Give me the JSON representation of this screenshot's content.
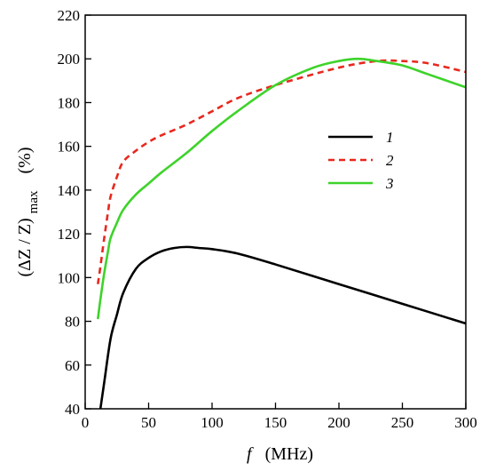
{
  "chart_data": {
    "type": "line",
    "xlabel": {
      "symbol": "f",
      "unit": "(MHz)"
    },
    "ylabel": {
      "main": "(ΔZ / Z)",
      "sub": "max",
      "unit": "(%)"
    },
    "xlim": [
      0,
      300
    ],
    "ylim": [
      40,
      220
    ],
    "xticks": [
      0,
      50,
      100,
      150,
      200,
      250,
      300
    ],
    "yticks": [
      40,
      60,
      80,
      100,
      120,
      140,
      160,
      180,
      200,
      220
    ],
    "grid": false,
    "legend_position": "center-right",
    "series": [
      {
        "name": "1",
        "color": "#000000",
        "dash": "solid",
        "x": [
          12,
          15,
          20,
          25,
          30,
          40,
          50,
          60,
          70,
          80,
          90,
          100,
          120,
          150,
          200,
          250,
          300
        ],
        "y": [
          40,
          52,
          72,
          83,
          93,
          104,
          109,
          112,
          113.5,
          114,
          113.5,
          113,
          111,
          106,
          97,
          88,
          79
        ]
      },
      {
        "name": "2",
        "color": "#e8281e",
        "dash": "dashed",
        "x": [
          10,
          12,
          15,
          18,
          20,
          25,
          30,
          40,
          50,
          60,
          80,
          100,
          120,
          150,
          200,
          230,
          250,
          270,
          300
        ],
        "y": [
          97,
          105,
          118,
          130,
          137,
          146,
          153,
          158,
          162,
          165,
          170,
          176,
          182,
          188,
          196,
          199,
          199,
          198,
          194
        ]
      },
      {
        "name": "3",
        "color": "#3ed32a",
        "dash": "solid",
        "x": [
          10,
          12,
          15,
          18,
          20,
          25,
          30,
          40,
          50,
          60,
          80,
          100,
          120,
          150,
          180,
          200,
          215,
          230,
          250,
          270,
          300
        ],
        "y": [
          81,
          90,
          102,
          112,
          118,
          125,
          131,
          138,
          143,
          148,
          157,
          167,
          176,
          188,
          196,
          199,
          200,
          199,
          197,
          193,
          187
        ]
      }
    ]
  }
}
